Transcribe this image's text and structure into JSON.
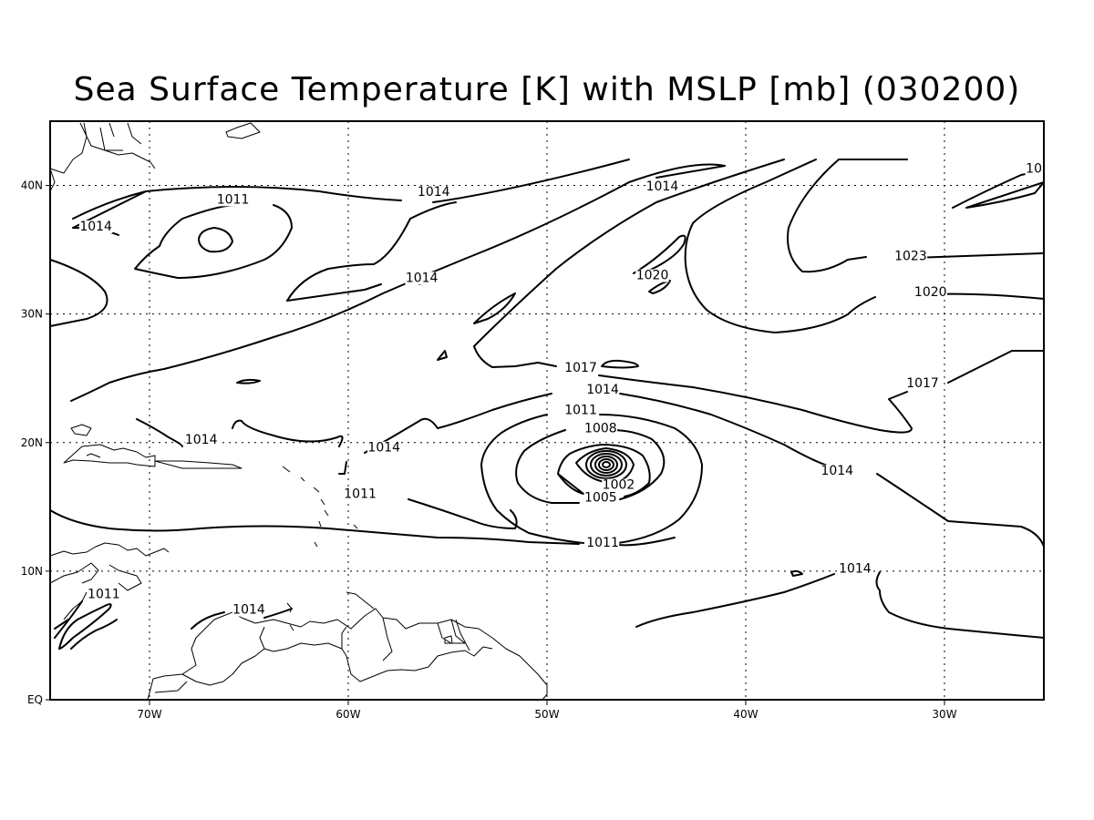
{
  "title": "Sea Surface Temperature [K] with MSLP [mb] (030200)",
  "axes": {
    "lon_ticks": [
      {
        "value": -70,
        "label": "70W"
      },
      {
        "value": -60,
        "label": "60W"
      },
      {
        "value": -50,
        "label": "50W"
      },
      {
        "value": -40,
        "label": "40W"
      },
      {
        "value": -30,
        "label": "30W"
      }
    ],
    "lat_ticks": [
      {
        "value": 0,
        "label": "EQ"
      },
      {
        "value": 10,
        "label": "10N"
      },
      {
        "value": 20,
        "label": "20N"
      },
      {
        "value": 30,
        "label": "30N"
      },
      {
        "value": 40,
        "label": "40N"
      }
    ],
    "lon_range": [
      -75,
      -25
    ],
    "lat_range": [
      0,
      45
    ],
    "grid": "dotted"
  },
  "contour_labels": [
    {
      "text": "1011",
      "lon": -65.8,
      "lat": 38.6
    },
    {
      "text": "1014",
      "lon": -72.7,
      "lat": 36.5
    },
    {
      "text": "1014",
      "lon": -55.7,
      "lat": 39.2
    },
    {
      "text": "1014",
      "lon": -44.2,
      "lat": 39.6
    },
    {
      "text": "10",
      "lon": -25.5,
      "lat": 41.0
    },
    {
      "text": "1014",
      "lon": -56.3,
      "lat": 32.5
    },
    {
      "text": "1020",
      "lon": -44.7,
      "lat": 32.7
    },
    {
      "text": "1023",
      "lon": -31.7,
      "lat": 34.2
    },
    {
      "text": "1020",
      "lon": -30.7,
      "lat": 31.4
    },
    {
      "text": "1017",
      "lon": -48.3,
      "lat": 25.5
    },
    {
      "text": "1017",
      "lon": -31.1,
      "lat": 24.3
    },
    {
      "text": "1014",
      "lon": -47.2,
      "lat": 23.8
    },
    {
      "text": "1011",
      "lon": -48.3,
      "lat": 22.2
    },
    {
      "text": "1008",
      "lon": -47.3,
      "lat": 20.8
    },
    {
      "text": "1014",
      "lon": -67.4,
      "lat": 19.9
    },
    {
      "text": "1014",
      "lon": -58.2,
      "lat": 19.3
    },
    {
      "text": "1014",
      "lon": -35.4,
      "lat": 17.5
    },
    {
      "text": "1002",
      "lon": -46.4,
      "lat": 16.4
    },
    {
      "text": "1005",
      "lon": -47.3,
      "lat": 15.4
    },
    {
      "text": "1011",
      "lon": -59.4,
      "lat": 15.7
    },
    {
      "text": "1011",
      "lon": -47.2,
      "lat": 11.9
    },
    {
      "text": "1014",
      "lon": -34.5,
      "lat": 9.9
    },
    {
      "text": "1011",
      "lon": -72.3,
      "lat": 7.9
    },
    {
      "text": "1014",
      "lon": -65.0,
      "lat": 6.7
    }
  ]
}
